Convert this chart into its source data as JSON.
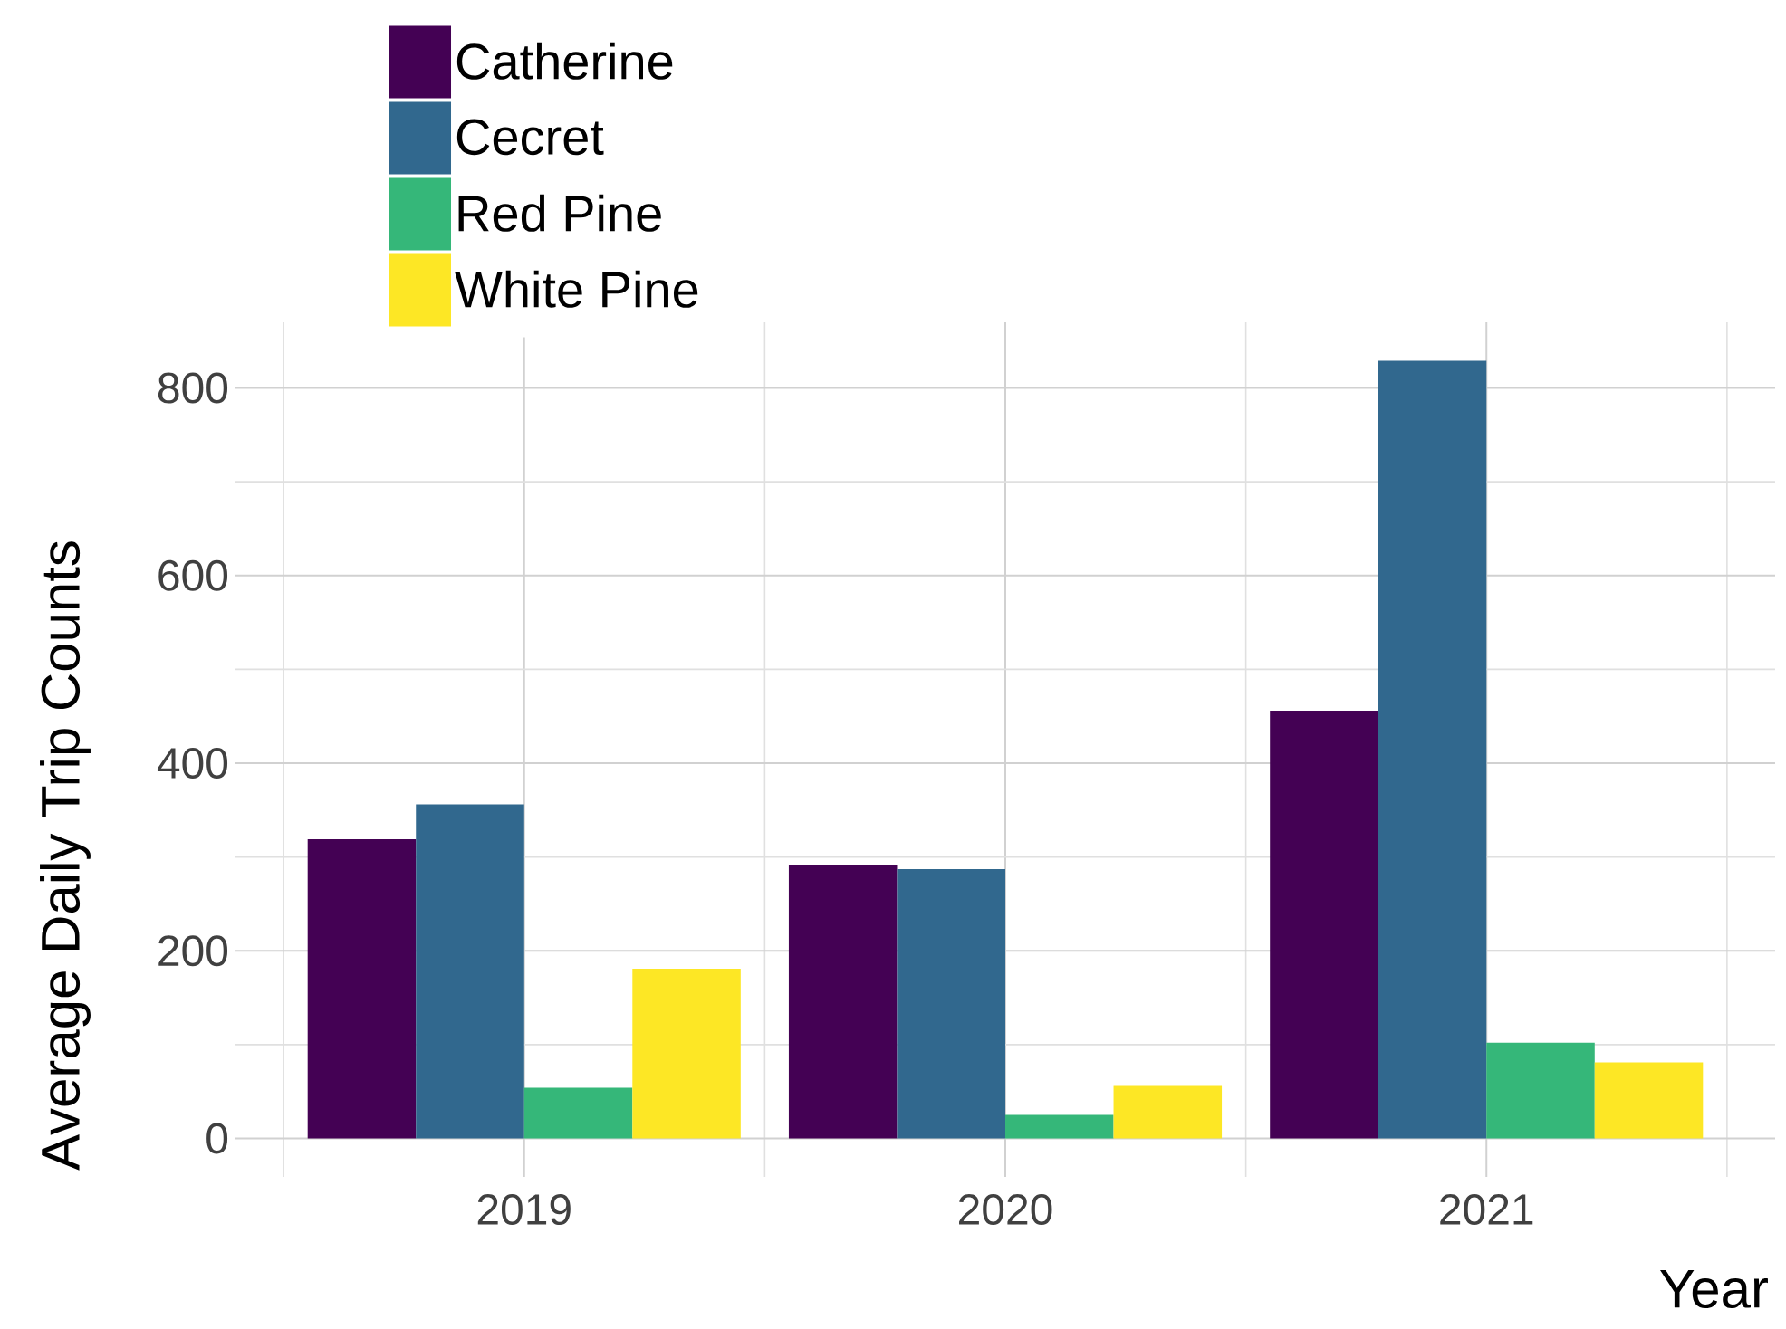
{
  "chart_data": {
    "type": "bar",
    "xlabel": "Year",
    "ylabel": "Average Daily Trip Counts",
    "categories": [
      "2019",
      "2020",
      "2021"
    ],
    "series": [
      {
        "name": "Catherine",
        "color": "#440154",
        "values": [
          319,
          292,
          456
        ]
      },
      {
        "name": "Cecret",
        "color": "#31688e",
        "values": [
          356,
          287,
          829
        ]
      },
      {
        "name": "Red Pine",
        "color": "#35b779",
        "values": [
          54,
          25,
          102
        ]
      },
      {
        "name": "White Pine",
        "color": "#fde725",
        "values": [
          181,
          56,
          81
        ]
      }
    ],
    "ylim": [
      -41,
      870
    ],
    "yticks": [
      0,
      200,
      400,
      600,
      800
    ],
    "grid": true,
    "legend": "top left"
  }
}
